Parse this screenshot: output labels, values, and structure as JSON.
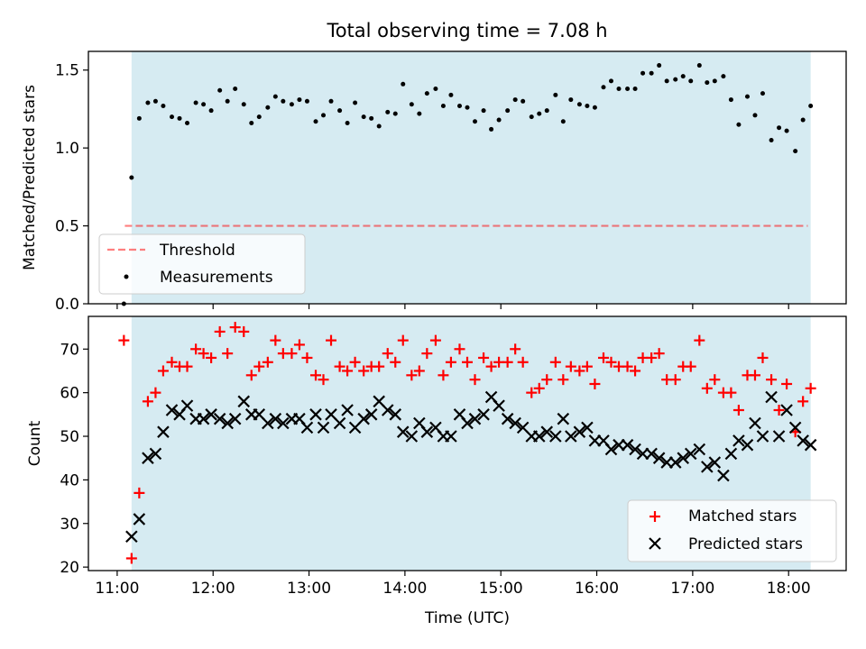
{
  "figure": {
    "title": "Total observing time = 7.08 h"
  },
  "chart_data": [
    {
      "type": "scatter",
      "ylabel": "Matched/Predicted stars",
      "xlabel": "",
      "ylim": [
        0,
        1.62
      ],
      "yticks": [
        0.0,
        0.5,
        1.0,
        1.5
      ],
      "ytick_labels": [
        "0.0",
        "0.5",
        "1.0",
        "1.5"
      ],
      "xlim": [
        10.7,
        18.6
      ],
      "xticks": [
        11,
        12,
        13,
        14,
        15,
        16,
        17,
        18
      ],
      "xtick_labels": [
        "",
        "",
        "",
        "",
        "",
        "",
        "",
        ""
      ],
      "observing_window": [
        11.15,
        18.23
      ],
      "threshold": {
        "name": "Threshold",
        "y": 0.5,
        "x": [
          11.08,
          18.2
        ]
      },
      "legend": {
        "location": "lower-left",
        "entries": [
          "Threshold",
          "Measurements"
        ]
      },
      "series": [
        {
          "name": "Measurements",
          "x": [
            11.07,
            11.15,
            11.23,
            11.32,
            11.4,
            11.48,
            11.57,
            11.65,
            11.73,
            11.82,
            11.9,
            11.98,
            12.07,
            12.15,
            12.23,
            12.32,
            12.4,
            12.48,
            12.57,
            12.65,
            12.73,
            12.82,
            12.9,
            12.98,
            13.07,
            13.15,
            13.23,
            13.32,
            13.4,
            13.48,
            13.57,
            13.65,
            13.73,
            13.82,
            13.9,
            13.98,
            14.07,
            14.15,
            14.23,
            14.32,
            14.4,
            14.48,
            14.57,
            14.65,
            14.73,
            14.82,
            14.9,
            14.98,
            15.07,
            15.15,
            15.23,
            15.32,
            15.4,
            15.48,
            15.57,
            15.65,
            15.73,
            15.82,
            15.9,
            15.98,
            16.07,
            16.15,
            16.23,
            16.32,
            16.4,
            16.48,
            16.57,
            16.65,
            16.73,
            16.82,
            16.9,
            16.98,
            17.07,
            17.15,
            17.23,
            17.32,
            17.4,
            17.48,
            17.57,
            17.65,
            17.73,
            17.82,
            17.9,
            17.98,
            18.07,
            18.15,
            18.23
          ],
          "y": [
            0.0,
            0.81,
            1.19,
            1.29,
            1.3,
            1.27,
            1.2,
            1.19,
            1.16,
            1.29,
            1.28,
            1.24,
            1.37,
            1.3,
            1.38,
            1.28,
            1.16,
            1.2,
            1.26,
            1.33,
            1.3,
            1.28,
            1.31,
            1.3,
            1.17,
            1.21,
            1.3,
            1.24,
            1.16,
            1.29,
            1.2,
            1.19,
            1.14,
            1.23,
            1.22,
            1.41,
            1.28,
            1.22,
            1.35,
            1.38,
            1.27,
            1.34,
            1.27,
            1.26,
            1.17,
            1.24,
            1.12,
            1.18,
            1.24,
            1.31,
            1.3,
            1.2,
            1.22,
            1.24,
            1.34,
            1.17,
            1.31,
            1.28,
            1.27,
            1.26,
            1.39,
            1.43,
            1.38,
            1.38,
            1.38,
            1.48,
            1.48,
            1.53,
            1.43,
            1.44,
            1.46,
            1.43,
            1.53,
            1.42,
            1.43,
            1.46,
            1.31,
            1.15,
            1.33,
            1.21,
            1.35,
            1.05,
            1.13,
            1.11,
            0.98,
            1.18,
            1.27
          ]
        }
      ]
    },
    {
      "type": "scatter",
      "ylabel": "Count",
      "xlabel": "Time (UTC)",
      "ylim": [
        19.2,
        77.5
      ],
      "yticks": [
        20,
        30,
        40,
        50,
        60,
        70
      ],
      "ytick_labels": [
        "20",
        "30",
        "40",
        "50",
        "60",
        "70"
      ],
      "xlim": [
        10.7,
        18.6
      ],
      "xticks": [
        11,
        12,
        13,
        14,
        15,
        16,
        17,
        18
      ],
      "xtick_labels": [
        "11:00",
        "12:00",
        "13:00",
        "14:00",
        "15:00",
        "16:00",
        "17:00",
        "18:00"
      ],
      "observing_window": [
        11.15,
        18.23
      ],
      "legend": {
        "location": "lower-right",
        "entries": [
          "Matched stars",
          "Predicted stars"
        ]
      },
      "series": [
        {
          "name": "Matched stars",
          "x": [
            11.07,
            11.15,
            11.23,
            11.32,
            11.4,
            11.48,
            11.57,
            11.65,
            11.73,
            11.82,
            11.9,
            11.98,
            12.07,
            12.15,
            12.23,
            12.32,
            12.4,
            12.48,
            12.57,
            12.65,
            12.73,
            12.82,
            12.9,
            12.98,
            13.07,
            13.15,
            13.23,
            13.32,
            13.4,
            13.48,
            13.57,
            13.65,
            13.73,
            13.82,
            13.9,
            13.98,
            14.07,
            14.15,
            14.23,
            14.32,
            14.4,
            14.48,
            14.57,
            14.65,
            14.73,
            14.82,
            14.9,
            14.98,
            15.07,
            15.15,
            15.23,
            15.32,
            15.4,
            15.48,
            15.57,
            15.65,
            15.73,
            15.82,
            15.9,
            15.98,
            16.07,
            16.15,
            16.23,
            16.32,
            16.4,
            16.48,
            16.57,
            16.65,
            16.73,
            16.82,
            16.9,
            16.98,
            17.07,
            17.15,
            17.23,
            17.32,
            17.4,
            17.48,
            17.57,
            17.65,
            17.73,
            17.82,
            17.9,
            17.98,
            18.07,
            18.15,
            18.23
          ],
          "y": [
            72,
            22,
            37,
            58,
            60,
            65,
            67,
            66,
            66,
            70,
            69,
            68,
            74,
            69,
            75,
            74,
            64,
            66,
            67,
            72,
            69,
            69,
            71,
            68,
            64,
            63,
            72,
            66,
            65,
            67,
            65,
            66,
            66,
            69,
            67,
            72,
            64,
            65,
            69,
            72,
            64,
            67,
            70,
            67,
            63,
            68,
            66,
            67,
            67,
            70,
            67,
            60,
            61,
            63,
            67,
            63,
            66,
            65,
            66,
            62,
            68,
            67,
            66,
            66,
            65,
            68,
            68,
            69,
            63,
            63,
            66,
            66,
            72,
            61,
            63,
            60,
            60,
            56,
            64,
            64,
            68,
            63,
            56,
            62,
            51,
            58,
            61
          ]
        },
        {
          "name": "Predicted stars",
          "x": [
            11.15,
            11.23,
            11.32,
            11.4,
            11.48,
            11.57,
            11.65,
            11.73,
            11.82,
            11.9,
            11.98,
            12.07,
            12.15,
            12.23,
            12.32,
            12.4,
            12.48,
            12.57,
            12.65,
            12.73,
            12.82,
            12.9,
            12.98,
            13.07,
            13.15,
            13.23,
            13.32,
            13.4,
            13.48,
            13.57,
            13.65,
            13.73,
            13.82,
            13.9,
            13.98,
            14.07,
            14.15,
            14.23,
            14.32,
            14.4,
            14.48,
            14.57,
            14.65,
            14.73,
            14.82,
            14.9,
            14.98,
            15.07,
            15.15,
            15.23,
            15.32,
            15.4,
            15.48,
            15.57,
            15.65,
            15.73,
            15.82,
            15.9,
            15.98,
            16.07,
            16.15,
            16.23,
            16.32,
            16.4,
            16.48,
            16.57,
            16.65,
            16.73,
            16.82,
            16.9,
            16.98,
            17.07,
            17.15,
            17.23,
            17.32,
            17.4,
            17.48,
            17.57,
            17.65,
            17.73,
            17.82,
            17.9,
            17.98,
            18.07,
            18.15,
            18.23
          ],
          "y": [
            27,
            31,
            45,
            46,
            51,
            56,
            55,
            57,
            54,
            54,
            55,
            54,
            53,
            54,
            58,
            55,
            55,
            53,
            54,
            53,
            54,
            54,
            52,
            55,
            52,
            55,
            53,
            56,
            52,
            54,
            55,
            58,
            56,
            55,
            51,
            50,
            53,
            51,
            52,
            50,
            50,
            55,
            53,
            54,
            55,
            59,
            57,
            54,
            53,
            52,
            50,
            50,
            51,
            50,
            54,
            50,
            51,
            52,
            49,
            49,
            47,
            48,
            48,
            47,
            46,
            46,
            45,
            44,
            44,
            45,
            46,
            47,
            43,
            44,
            41,
            46,
            49,
            48,
            53,
            50,
            59,
            50,
            56,
            52,
            49,
            48
          ]
        }
      ]
    }
  ],
  "style": {
    "span_color": "#add8e6",
    "threshold_color": "#ff0000",
    "measurement_color": "#000000",
    "matched_color": "#ff0000",
    "predicted_color": "#000000",
    "legend_bg": "#ffffff"
  }
}
